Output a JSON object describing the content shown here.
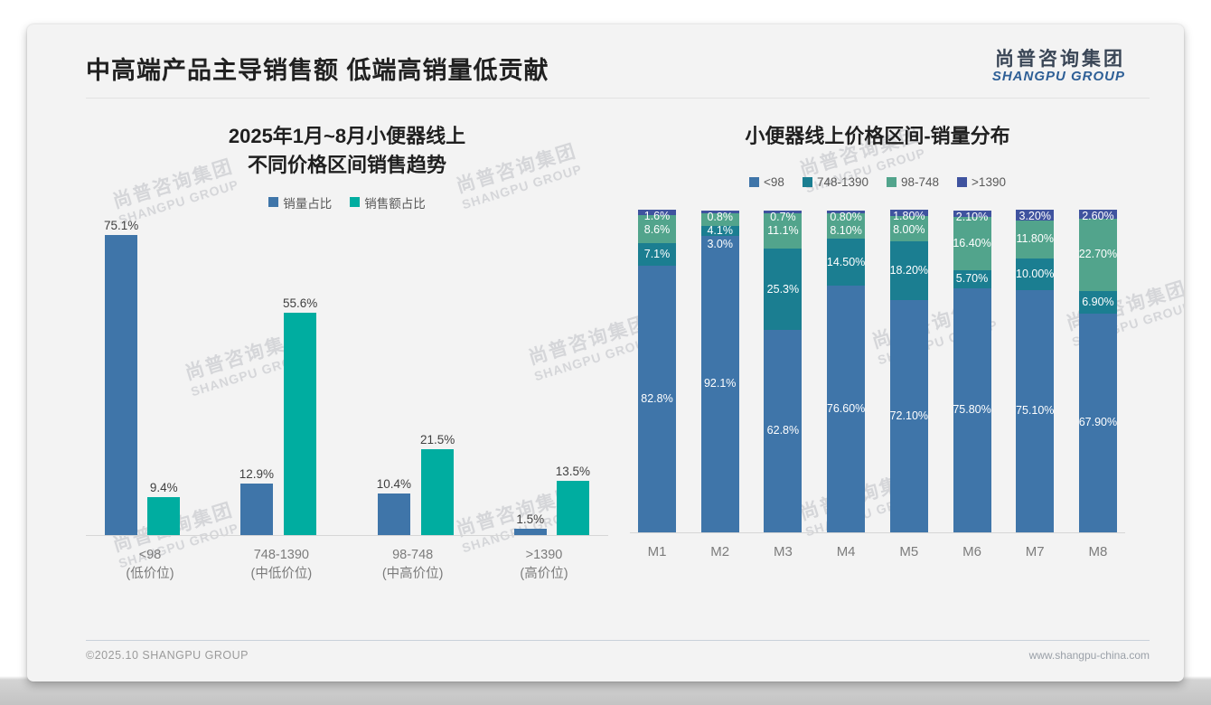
{
  "page": {
    "title": "中高端产品主导销售额 低端高销量低贡献",
    "logo": {
      "cn": "尚普咨询集团",
      "en": "SHANGPU GROUP"
    },
    "watermark": {
      "cn": "尚普咨询集团",
      "en": "SHANGPU GROUP"
    },
    "footer": {
      "left": "©2025.10 SHANGPU GROUP",
      "right": "www.shangpu-china.com"
    }
  },
  "colors": {
    "card_bg": "#f3f3f3",
    "blue": "#3f75a9",
    "teal_bright": "#00ada0",
    "teal_dark": "#1b7e91",
    "green": "#52a48c",
    "indigo": "#3f539f",
    "axis_line": "#d6d6d6",
    "logo_blue": "#2e5f96"
  },
  "chart_data": [
    {
      "type": "bar",
      "stacked": false,
      "title": "2025年1月~8月小便器线上\n不同价格区间销售趋势",
      "categories": [
        "<98\n(低价位)",
        "748-1390\n(中低价位)",
        "98-748\n(中高价位)",
        ">1390\n(高价位)"
      ],
      "series": [
        {
          "name": "销量占比",
          "color": "#3f75a9",
          "values": [
            75.1,
            12.9,
            10.4,
            1.5
          ],
          "labels": [
            "75.1%",
            "12.9%",
            "10.4%",
            "1.5%"
          ]
        },
        {
          "name": "销售额占比",
          "color": "#00ada0",
          "values": [
            9.4,
            55.6,
            21.5,
            13.5
          ],
          "labels": [
            "9.4%",
            "55.6%",
            "21.5%",
            "13.5%"
          ]
        }
      ],
      "ylim": [
        0,
        80
      ],
      "grid": false,
      "legend_position": "top",
      "value_labels": "above-bars"
    },
    {
      "type": "bar",
      "stacked": true,
      "title": "小便器线上价格区间-销量分布",
      "categories": [
        "M1",
        "M2",
        "M3",
        "M4",
        "M5",
        "M6",
        "M7",
        "M8"
      ],
      "series": [
        {
          "name": "<98",
          "color": "#3f75a9",
          "values": [
            82.8,
            92.1,
            62.8,
            76.6,
            72.1,
            75.8,
            75.1,
            67.9
          ],
          "labels": [
            "82.8%",
            "92.1%",
            "62.8%",
            "76.60%",
            "72.10%",
            "75.80%",
            "75.10%",
            "67.90%"
          ]
        },
        {
          "name": "748-1390",
          "color": "#1b7e91",
          "values": [
            7.1,
            3.0,
            25.3,
            14.5,
            18.2,
            5.7,
            10.0,
            6.9
          ],
          "labels": [
            "7.1%",
            "3.0%",
            "25.3%",
            "14.50%",
            "18.20%",
            "5.70%",
            "10.00%",
            "6.90%"
          ]
        },
        {
          "name": "98-748",
          "color": "#52a48c",
          "values": [
            8.6,
            4.1,
            11.1,
            8.1,
            8.0,
            16.4,
            11.8,
            22.7
          ],
          "labels": [
            "8.6%",
            "4.1%",
            "11.1%",
            "8.10%",
            "8.00%",
            "16.40%",
            "11.80%",
            "22.70%"
          ]
        },
        {
          "name": ">1390",
          "color": "#3f539f",
          "values": [
            1.6,
            0.8,
            0.7,
            0.8,
            1.8,
            2.1,
            3.2,
            2.6
          ],
          "labels": [
            "1.6%",
            "0.8%",
            "0.7%",
            "0.80%",
            "1.80%",
            "2.10%",
            "3.20%",
            "2.60%"
          ]
        }
      ],
      "ylim": [
        0,
        100
      ],
      "grid": false,
      "legend_position": "top",
      "value_labels": "inside-segments"
    }
  ]
}
